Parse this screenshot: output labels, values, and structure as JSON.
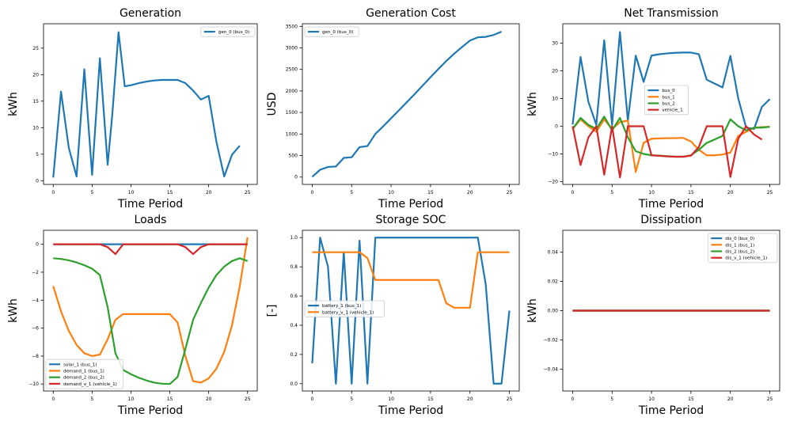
{
  "colors": {
    "blue": "#1f77b4",
    "orange": "#ff7f0e",
    "green": "#2ca02c",
    "red": "#d62728"
  },
  "chart_data": [
    {
      "type": "line",
      "title": "Generation",
      "xlabel": "Time Period",
      "ylabel": "kWh",
      "xlim": [
        -1.25,
        26.25
      ],
      "ylim": [
        -0.7,
        29.6
      ],
      "xticks": [
        0,
        5,
        10,
        15,
        20,
        25
      ],
      "yticks": [
        0,
        5,
        10,
        15,
        20,
        25
      ],
      "legend": "top-right",
      "series": [
        {
          "name": "gen_0 (bus_0)",
          "color": "#1f77b4",
          "x": [
            0,
            1,
            2,
            3,
            4,
            5,
            6,
            7,
            7.6,
            8.4,
            9.2,
            10,
            11,
            12,
            13,
            14,
            15,
            16,
            17,
            18,
            19,
            20,
            21,
            22,
            23,
            24,
            25
          ],
          "y": [
            0.6,
            16.8,
            6.2,
            0.8,
            21.0,
            1.1,
            23.1,
            3.0,
            12.5,
            28.0,
            17.8,
            18.0,
            18.4,
            18.7,
            18.9,
            19.0,
            19.0,
            19.0,
            18.4,
            17.0,
            15.3,
            16.0,
            7.3,
            0.8,
            4.9,
            6.6,
            null
          ]
        }
      ]
    },
    {
      "type": "line",
      "title": "Generation Cost",
      "xlabel": "Time Period",
      "ylabel": "USD",
      "xlim": [
        -1.25,
        26.25
      ],
      "ylim": [
        -170,
        3560
      ],
      "xticks": [
        0,
        5,
        10,
        15,
        20,
        25
      ],
      "yticks": [
        0,
        500,
        1000,
        1500,
        2000,
        2500,
        3000,
        3500
      ],
      "legend": "top-left",
      "series": [
        {
          "name": "gen_0 (bus_0)",
          "color": "#1f77b4",
          "x": [
            0,
            1,
            2,
            3,
            4,
            5,
            6,
            7,
            8,
            9,
            10,
            11,
            12,
            13,
            14,
            15,
            16,
            17,
            18,
            19,
            20,
            21,
            22,
            23,
            24,
            25
          ],
          "y": [
            5,
            170,
            235,
            245,
            445,
            460,
            695,
            720,
            1000,
            1180,
            1365,
            1550,
            1740,
            1930,
            2125,
            2320,
            2510,
            2695,
            2865,
            3020,
            3170,
            3245,
            3255,
            3300,
            3375,
            null
          ]
        }
      ]
    },
    {
      "type": "line",
      "title": "Net Transmission",
      "xlabel": "Time Period",
      "ylabel": "kWh",
      "xlim": [
        -1.25,
        26.25
      ],
      "ylim": [
        -21,
        37
      ],
      "xticks": [
        0,
        5,
        10,
        15,
        20,
        25
      ],
      "yticks": [
        -20,
        -10,
        0,
        10,
        20,
        30
      ],
      "legend": "center",
      "series": [
        {
          "name": "bus_0",
          "color": "#1f77b4",
          "x": [
            0,
            1,
            2,
            3,
            4,
            5,
            6,
            7,
            8,
            9,
            10,
            11,
            12,
            13,
            14,
            15,
            16,
            17,
            18,
            19,
            20,
            21,
            22,
            23,
            24,
            25
          ],
          "y": [
            0.6,
            25.0,
            8.8,
            0.5,
            31.0,
            0.5,
            34.0,
            2.0,
            25.5,
            16.0,
            25.5,
            26.0,
            26.3,
            26.5,
            26.6,
            26.6,
            26.0,
            16.8,
            15.4,
            14.0,
            25.4,
            10.0,
            -0.5,
            -1.0,
            7.0,
            9.8
          ]
        },
        {
          "name": "bus_1",
          "color": "#ff7f0e",
          "x": [
            0,
            1,
            2,
            3,
            4,
            5,
            6,
            7,
            8,
            9,
            10,
            11,
            12,
            13,
            14,
            15,
            16,
            17,
            18,
            19,
            20,
            21,
            22,
            23,
            24,
            25
          ],
          "y": [
            -1,
            2.5,
            0,
            -2,
            2.5,
            -1,
            1.5,
            2,
            -16.5,
            -6,
            -4.5,
            -4.4,
            -4.3,
            -4.3,
            -4.2,
            -5.5,
            -8.5,
            -10.5,
            -10.5,
            -10.2,
            -9.5,
            -3.5,
            -2.0,
            -0.5,
            -0.3,
            -0.2
          ]
        },
        {
          "name": "bus_2",
          "color": "#2ca02c",
          "x": [
            0,
            1,
            2,
            3,
            4,
            5,
            6,
            7,
            8,
            9,
            10,
            11,
            12,
            13,
            14,
            15,
            16,
            17,
            18,
            19,
            20,
            21,
            22,
            23,
            24,
            25
          ],
          "y": [
            -1,
            3,
            0.5,
            -1,
            3.5,
            -1.5,
            3,
            -4,
            -9,
            -10,
            -10.5,
            -10.6,
            -10.8,
            -11,
            -11,
            -10.5,
            -8.5,
            -6,
            -4.8,
            -3.5,
            2.5,
            0,
            -1.5,
            -0.5,
            -0.5,
            -0.2
          ]
        },
        {
          "name": "vehicle_1",
          "color": "#d62728",
          "x": [
            0,
            1,
            2,
            3,
            4,
            5,
            6,
            7,
            8,
            9,
            10,
            11,
            12,
            13,
            14,
            15,
            16,
            17,
            18,
            19,
            20,
            21,
            22,
            23,
            24,
            25
          ],
          "y": [
            0,
            -14,
            -4,
            0,
            -17.5,
            0,
            -18.5,
            0,
            0,
            0,
            -10.5,
            -10.7,
            -10.9,
            -11,
            -11,
            -10.6,
            -7.5,
            0,
            0,
            0,
            -18.3,
            -4.5,
            0,
            -3,
            -4.8,
            null
          ]
        }
      ]
    },
    {
      "type": "line",
      "title": "Loads",
      "xlabel": "Time Period",
      "ylabel": "kWh",
      "xlim": [
        -1.25,
        26.25
      ],
      "ylim": [
        -10.5,
        1.0
      ],
      "xticks": [
        0,
        5,
        10,
        15,
        20,
        25
      ],
      "yticks": [
        -10,
        -8,
        -6,
        -4,
        -2,
        0
      ],
      "legend": "bottom-left",
      "series": [
        {
          "name": "solar_1 (bus_1)",
          "color": "#1f77b4",
          "x": [
            0,
            1,
            2,
            3,
            4,
            5,
            6,
            7,
            8,
            9,
            10,
            11,
            12,
            13,
            14,
            15,
            16,
            17,
            18,
            19,
            20,
            21,
            22,
            23,
            24,
            25
          ],
          "y": [
            0,
            0,
            0,
            0,
            0,
            0,
            0,
            0,
            0,
            0,
            0,
            0,
            0,
            0,
            0,
            0,
            0,
            0,
            0,
            0,
            0,
            0,
            0,
            0,
            0,
            0
          ]
        },
        {
          "name": "demand_1 (bus_1)",
          "color": "#ff7f0e",
          "x": [
            0,
            1,
            2,
            3,
            4,
            5,
            6,
            7,
            8,
            9,
            10,
            11,
            12,
            13,
            14,
            15,
            16,
            17,
            18,
            19,
            20,
            21,
            22,
            23,
            24,
            25
          ],
          "y": [
            -3.0,
            -4.8,
            -6.2,
            -7.2,
            -7.8,
            -8.0,
            -7.9,
            -6.8,
            -5.4,
            -5.0,
            -5.0,
            -5.0,
            -5.0,
            -5.0,
            -5.0,
            -5.0,
            -5.6,
            -8.0,
            -9.8,
            -9.9,
            -9.6,
            -8.9,
            -7.7,
            -5.8,
            -3.0,
            0.5
          ]
        },
        {
          "name": "demand_2 (bus_2)",
          "color": "#2ca02c",
          "x": [
            0,
            1,
            2,
            3,
            4,
            5,
            6,
            7,
            8,
            9,
            10,
            11,
            12,
            13,
            14,
            15,
            16,
            17,
            18,
            19,
            20,
            21,
            22,
            23,
            24,
            25
          ],
          "y": [
            -1.0,
            -1.05,
            -1.15,
            -1.3,
            -1.5,
            -1.75,
            -2.2,
            -4.5,
            -7.8,
            -9.0,
            -9.3,
            -9.55,
            -9.75,
            -9.9,
            -9.98,
            -10.0,
            -9.5,
            -7.5,
            -5.4,
            -4.2,
            -3.1,
            -2.2,
            -1.6,
            -1.2,
            -1.0,
            -1.2
          ]
        },
        {
          "name": "demand_v_1 (vehicle_1)",
          "color": "#d62728",
          "x": [
            0,
            1,
            2,
            3,
            4,
            5,
            6,
            7,
            8,
            9,
            10,
            11,
            12,
            13,
            14,
            15,
            16,
            17,
            18,
            19,
            20,
            21,
            22,
            23,
            24,
            25
          ],
          "y": [
            0,
            0,
            0,
            0,
            0,
            0,
            0,
            -0.2,
            -0.7,
            0,
            0,
            0,
            0,
            0,
            0,
            0,
            0,
            -0.2,
            -0.7,
            -0.2,
            0,
            0,
            0,
            0,
            0,
            0
          ]
        }
      ]
    },
    {
      "type": "line",
      "title": "Storage SOC",
      "xlabel": "Time Period",
      "ylabel": "[-]",
      "xlim": [
        -1.25,
        26.25
      ],
      "ylim": [
        -0.05,
        1.05
      ],
      "xticks": [
        0,
        5,
        10,
        15,
        20,
        25
      ],
      "yticks": [
        0.0,
        0.2,
        0.4,
        0.6,
        0.8,
        1.0
      ],
      "legend": "center-left",
      "series": [
        {
          "name": "battery_1 (bus_1)",
          "color": "#1f77b4",
          "x": [
            0,
            1,
            2,
            3,
            4,
            5,
            6,
            7,
            8,
            9,
            10,
            11,
            12,
            13,
            14,
            15,
            16,
            17,
            18,
            19,
            20,
            21,
            22,
            23,
            24,
            25
          ],
          "y": [
            0.14,
            1.0,
            0.8,
            0.0,
            0.9,
            0.0,
            0.98,
            0.0,
            1.0,
            1.0,
            1.0,
            1.0,
            1.0,
            1.0,
            1.0,
            1.0,
            1.0,
            1.0,
            1.0,
            1.0,
            1.0,
            1.0,
            0.68,
            0.0,
            0.0,
            0.5
          ]
        },
        {
          "name": "battery_v_1 (vehicle_1)",
          "color": "#ff7f0e",
          "x": [
            0,
            1,
            2,
            3,
            4,
            5,
            6,
            7,
            8,
            9,
            10,
            11,
            12,
            13,
            14,
            15,
            16,
            17,
            18,
            19,
            20,
            21,
            22,
            23,
            24,
            25
          ],
          "y": [
            0.9,
            0.9,
            0.9,
            0.9,
            0.9,
            0.9,
            0.9,
            0.86,
            0.71,
            0.71,
            0.71,
            0.71,
            0.71,
            0.71,
            0.71,
            0.71,
            0.71,
            0.55,
            0.52,
            0.52,
            0.52,
            0.9,
            0.9,
            0.9,
            0.9,
            0.9
          ]
        }
      ]
    },
    {
      "type": "line",
      "title": "Dissipation",
      "xlabel": "Time Period",
      "ylabel": "kWh",
      "xlim": [
        -1.25,
        26.25
      ],
      "ylim": [
        -0.055,
        0.055
      ],
      "xticks": [
        0,
        5,
        10,
        15,
        20,
        25
      ],
      "yticks": [
        -0.04,
        -0.02,
        0.0,
        0.02,
        0.04
      ],
      "ytick_labels": [
        "−0.04",
        "−0.02",
        "0.00",
        "0.02",
        "0.04"
      ],
      "legend": "top-right",
      "series": [
        {
          "name": "dis_0 (bus_0)",
          "color": "#1f77b4",
          "x": [
            0,
            25
          ],
          "y": [
            0,
            0
          ]
        },
        {
          "name": "dis_1 (bus_1)",
          "color": "#ff7f0e",
          "x": [
            0,
            25
          ],
          "y": [
            0,
            0
          ]
        },
        {
          "name": "dis_2 (bus_2)",
          "color": "#2ca02c",
          "x": [
            0,
            25
          ],
          "y": [
            0,
            0
          ]
        },
        {
          "name": "dis_v_1 (vehicle_1)",
          "color": "#d62728",
          "x": [
            0,
            25
          ],
          "y": [
            0,
            0
          ]
        }
      ]
    }
  ]
}
